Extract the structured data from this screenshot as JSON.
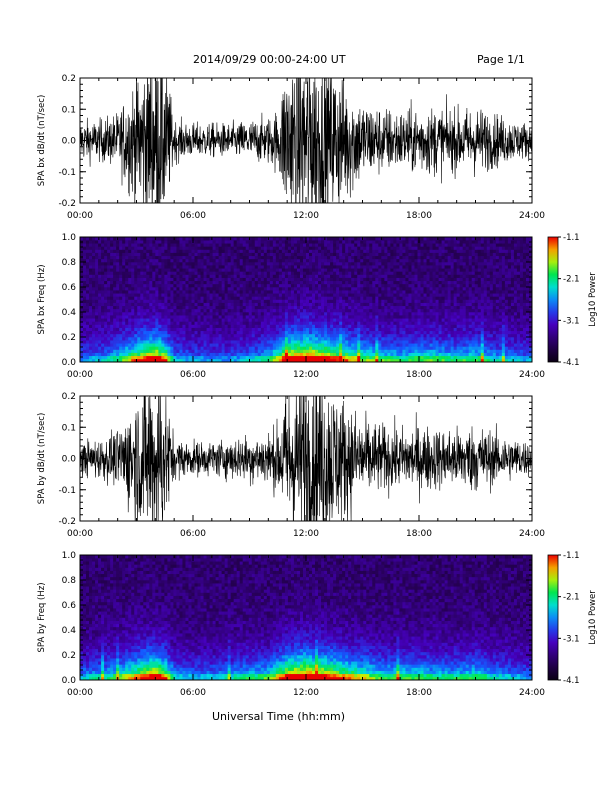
{
  "header": {
    "title": "2014/09/29  00:00-24:00 UT",
    "page": "Page 1/1"
  },
  "xlabel": "Universal Time (hh:mm)",
  "chart_data": [
    {
      "type": "line",
      "ylabel": "SPA bx dB/dt (nT/sec)",
      "xlim": [
        "00:00",
        "24:00"
      ],
      "ylim": [
        -0.2,
        0.2
      ],
      "x_ticks": [
        "00:00",
        "06:00",
        "12:00",
        "18:00",
        "24:00"
      ],
      "y_ticks": [
        "-0.2",
        "-0.1",
        "0.0",
        "0.1",
        "0.2"
      ],
      "envelope": {
        "hours": [
          0,
          1,
          2,
          3,
          3.5,
          4,
          4.5,
          5,
          6,
          7,
          8,
          9,
          10,
          10.5,
          11,
          12,
          13,
          14,
          15,
          16,
          17,
          18,
          19,
          20,
          21,
          22,
          23,
          24
        ],
        "amplitude": [
          0.06,
          0.06,
          0.08,
          0.2,
          0.25,
          0.3,
          0.25,
          0.06,
          0.05,
          0.05,
          0.05,
          0.06,
          0.07,
          0.09,
          0.25,
          0.3,
          0.25,
          0.2,
          0.12,
          0.1,
          0.09,
          0.1,
          0.1,
          0.09,
          0.1,
          0.08,
          0.06,
          0.05
        ]
      }
    },
    {
      "type": "heatmap",
      "ylabel": "SPA bx Freq (Hz)",
      "xlim": [
        "00:00",
        "24:00"
      ],
      "ylim": [
        0,
        1.0
      ],
      "x_ticks": [
        "00:00",
        "06:00",
        "12:00",
        "18:00",
        "24:00"
      ],
      "y_ticks": [
        "0.0",
        "0.2",
        "0.4",
        "0.6",
        "0.8",
        "1.0"
      ],
      "colorbar": {
        "label": "Log10 Power",
        "ticks": [
          "-1.1",
          "-2.1",
          "-3.1",
          "-4.1"
        ],
        "range": [
          -4.1,
          -1.1
        ]
      },
      "activity": {
        "hours": [
          0,
          1,
          2,
          3,
          3.5,
          4,
          4.5,
          5,
          6,
          7,
          8,
          9,
          10,
          10.5,
          11,
          12,
          13,
          14,
          15,
          16,
          17,
          18,
          19,
          20,
          21,
          22,
          23,
          24
        ],
        "level": [
          0.3,
          0.35,
          0.45,
          0.7,
          0.8,
          0.9,
          0.75,
          0.35,
          0.3,
          0.3,
          0.3,
          0.35,
          0.45,
          0.6,
          0.85,
          0.95,
          0.85,
          0.7,
          0.55,
          0.5,
          0.45,
          0.5,
          0.5,
          0.45,
          0.5,
          0.4,
          0.35,
          0.3
        ]
      }
    },
    {
      "type": "line",
      "ylabel": "SPA by dB/dt (nT/sec)",
      "xlim": [
        "00:00",
        "24:00"
      ],
      "ylim": [
        -0.2,
        0.2
      ],
      "x_ticks": [
        "00:00",
        "06:00",
        "12:00",
        "18:00",
        "24:00"
      ],
      "y_ticks": [
        "-0.2",
        "-0.1",
        "0.0",
        "0.1",
        "0.2"
      ],
      "envelope": {
        "hours": [
          0,
          1,
          2,
          3,
          3.5,
          4,
          4.5,
          5,
          6,
          7,
          8,
          9,
          10,
          10.5,
          11,
          12,
          13,
          14,
          15,
          16,
          17,
          18,
          19,
          20,
          21,
          22,
          23,
          24
        ],
        "amplitude": [
          0.05,
          0.06,
          0.08,
          0.2,
          0.25,
          0.3,
          0.22,
          0.06,
          0.05,
          0.05,
          0.06,
          0.07,
          0.08,
          0.1,
          0.22,
          0.3,
          0.25,
          0.18,
          0.12,
          0.1,
          0.09,
          0.1,
          0.09,
          0.09,
          0.1,
          0.08,
          0.06,
          0.05
        ]
      }
    },
    {
      "type": "heatmap",
      "ylabel": "SPA by Freq (Hz)",
      "xlim": [
        "00:00",
        "24:00"
      ],
      "ylim": [
        0,
        1.0
      ],
      "x_ticks": [
        "00:00",
        "06:00",
        "12:00",
        "18:00",
        "24:00"
      ],
      "y_ticks": [
        "0.0",
        "0.2",
        "0.4",
        "0.6",
        "0.8",
        "1.0"
      ],
      "colorbar": {
        "label": "Log10 Power",
        "ticks": [
          "-1.1",
          "-2.1",
          "-3.1",
          "-4.1"
        ],
        "range": [
          -4.1,
          -1.1
        ]
      },
      "activity": {
        "hours": [
          0,
          1,
          2,
          3,
          3.5,
          4,
          4.5,
          5,
          6,
          7,
          8,
          9,
          10,
          10.5,
          11,
          12,
          13,
          14,
          15,
          16,
          17,
          18,
          19,
          20,
          21,
          22,
          23,
          24
        ],
        "level": [
          0.35,
          0.4,
          0.5,
          0.7,
          0.8,
          0.9,
          0.75,
          0.4,
          0.35,
          0.35,
          0.4,
          0.45,
          0.5,
          0.65,
          0.85,
          0.95,
          0.85,
          0.7,
          0.6,
          0.5,
          0.5,
          0.5,
          0.45,
          0.45,
          0.5,
          0.4,
          0.35,
          0.3
        ]
      }
    }
  ]
}
